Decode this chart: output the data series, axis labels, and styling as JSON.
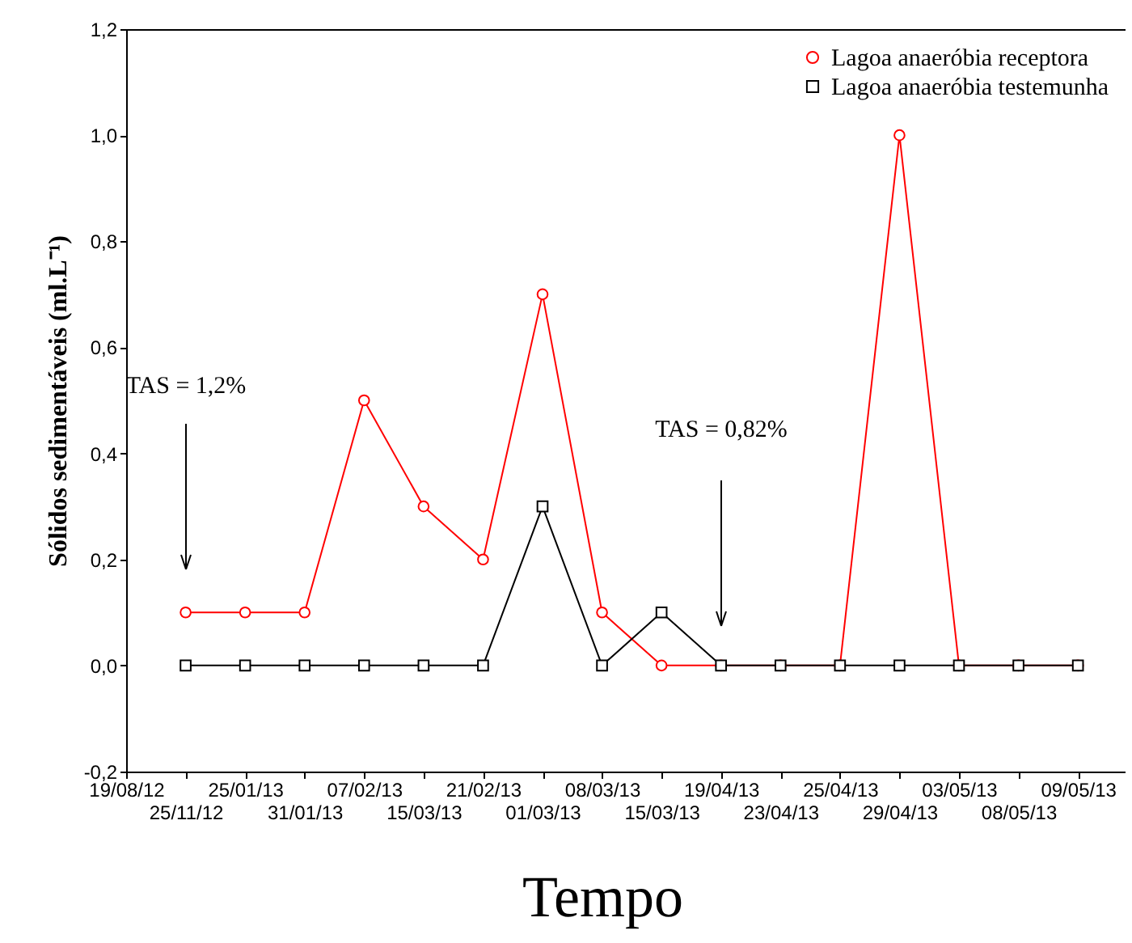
{
  "chart_data": {
    "type": "line",
    "xlabel": "Tempo",
    "ylabel": "Sólidos sedimentáveis (ml.L⁻¹)",
    "categories": [
      "19/08/12",
      "25/11/12",
      "25/01/13",
      "31/01/13",
      "07/02/13",
      "15/03/13",
      "21/02/13",
      "01/03/13",
      "08/03/13",
      "15/03/13",
      "19/04/13",
      "23/04/13",
      "25/04/13",
      "29/04/13",
      "03/05/13",
      "08/05/13",
      "09/05/13"
    ],
    "series": [
      {
        "name": "Lagoa anaeróbia receptora",
        "color": "#ff0000",
        "marker": "circle",
        "values": [
          null,
          0.1,
          0.1,
          0.1,
          0.5,
          0.3,
          0.2,
          0.7,
          0.1,
          0.0,
          0.0,
          0.0,
          0.0,
          1.0,
          0.0,
          0.0,
          0.0
        ]
      },
      {
        "name": "Lagoa anaeróbia testemunha",
        "color": "#000000",
        "marker": "square",
        "values": [
          null,
          0.0,
          0.0,
          0.0,
          0.0,
          0.0,
          0.0,
          0.3,
          0.0,
          0.1,
          0.0,
          0.0,
          0.0,
          0.0,
          0.0,
          0.0,
          0.0
        ]
      }
    ],
    "ylim": [
      -0.2,
      1.2
    ],
    "yticks": [
      {
        "value": -0.2,
        "label": "-0,2"
      },
      {
        "value": 0,
        "label": "0,0"
      },
      {
        "value": 0.2,
        "label": "0,2"
      },
      {
        "value": 0.4,
        "label": "0,4"
      },
      {
        "value": 0.6,
        "label": "0,6"
      },
      {
        "value": 0.8,
        "label": "0,8"
      },
      {
        "value": 1.0,
        "label": "1,0"
      },
      {
        "value": 1.2,
        "label": "1,2"
      }
    ],
    "annotations": [
      "TAS = 1,2%",
      "TAS = 0,82%"
    ],
    "legend": "top right",
    "grid": false
  }
}
